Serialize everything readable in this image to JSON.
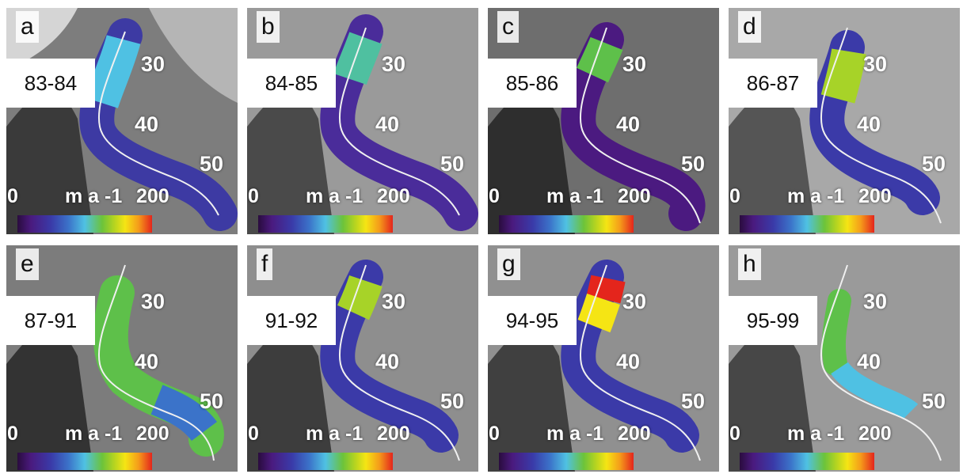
{
  "panels": [
    {
      "letter": "a",
      "period": "83-84"
    },
    {
      "letter": "b",
      "period": "84-85"
    },
    {
      "letter": "c",
      "period": "85-86"
    },
    {
      "letter": "d",
      "period": "86-87"
    },
    {
      "letter": "e",
      "period": "87-91"
    },
    {
      "letter": "f",
      "period": "91-92"
    },
    {
      "letter": "g",
      "period": "94-95"
    },
    {
      "letter": "h",
      "period": "95-99"
    }
  ],
  "km_labels": [
    "30",
    "40",
    "50"
  ],
  "colorbar": {
    "min": "0",
    "unit": "m a -1",
    "max": "200",
    "colors": [
      "#2a0c3e",
      "#3a3aa8",
      "#4fc1e3",
      "#6cc33a",
      "#f5e514",
      "#e4251c"
    ]
  }
}
